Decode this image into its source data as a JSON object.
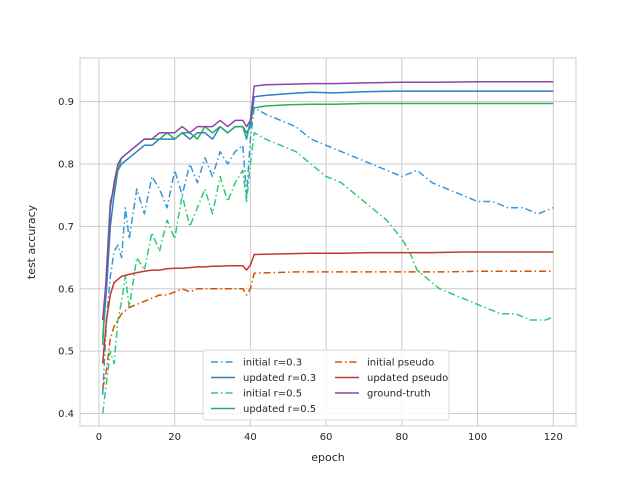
{
  "chart_data": {
    "type": "line",
    "title": "",
    "xlabel": "epoch",
    "ylabel": "test accuracy",
    "xlim": [
      -5,
      126
    ],
    "ylim": [
      0.38,
      0.97
    ],
    "xticks": [
      0,
      20,
      40,
      60,
      80,
      100,
      120
    ],
    "yticks": [
      0.4,
      0.5,
      0.6,
      0.7,
      0.8,
      0.9
    ],
    "xtick_labels": [
      "0",
      "20",
      "40",
      "60",
      "80",
      "100",
      "120"
    ],
    "ytick_labels": [
      "0.4",
      "0.5",
      "0.6",
      "0.7",
      "0.8",
      "0.9"
    ],
    "grid": true,
    "legend": {
      "placement": "lower-center",
      "columns": 2
    },
    "series": [
      {
        "name": "initial r=0.3",
        "style": "dashdot",
        "color": "#3498db",
        "points": [
          [
            1,
            0.43
          ],
          [
            2,
            0.55
          ],
          [
            3,
            0.62
          ],
          [
            4,
            0.66
          ],
          [
            5,
            0.67
          ],
          [
            6,
            0.65
          ],
          [
            7,
            0.73
          ],
          [
            8,
            0.68
          ],
          [
            10,
            0.76
          ],
          [
            12,
            0.72
          ],
          [
            14,
            0.78
          ],
          [
            16,
            0.76
          ],
          [
            18,
            0.73
          ],
          [
            20,
            0.79
          ],
          [
            22,
            0.75
          ],
          [
            24,
            0.8
          ],
          [
            26,
            0.77
          ],
          [
            28,
            0.81
          ],
          [
            30,
            0.78
          ],
          [
            32,
            0.82
          ],
          [
            34,
            0.8
          ],
          [
            36,
            0.82
          ],
          [
            38,
            0.83
          ],
          [
            39,
            0.75
          ],
          [
            40,
            0.84
          ],
          [
            41,
            0.89
          ],
          [
            44,
            0.88
          ],
          [
            48,
            0.87
          ],
          [
            52,
            0.86
          ],
          [
            56,
            0.84
          ],
          [
            60,
            0.83
          ],
          [
            64,
            0.82
          ],
          [
            68,
            0.81
          ],
          [
            72,
            0.8
          ],
          [
            76,
            0.79
          ],
          [
            80,
            0.78
          ],
          [
            84,
            0.79
          ],
          [
            88,
            0.77
          ],
          [
            92,
            0.76
          ],
          [
            96,
            0.75
          ],
          [
            100,
            0.74
          ],
          [
            104,
            0.74
          ],
          [
            108,
            0.73
          ],
          [
            112,
            0.73
          ],
          [
            116,
            0.72
          ],
          [
            120,
            0.73
          ]
        ]
      },
      {
        "name": "updated r=0.3",
        "style": "solid",
        "color": "#2e7ec4",
        "points": [
          [
            1,
            0.52
          ],
          [
            2,
            0.6
          ],
          [
            3,
            0.7
          ],
          [
            4,
            0.75
          ],
          [
            5,
            0.79
          ],
          [
            6,
            0.8
          ],
          [
            8,
            0.81
          ],
          [
            10,
            0.82
          ],
          [
            12,
            0.83
          ],
          [
            14,
            0.83
          ],
          [
            16,
            0.84
          ],
          [
            18,
            0.84
          ],
          [
            20,
            0.84
          ],
          [
            22,
            0.85
          ],
          [
            24,
            0.84
          ],
          [
            26,
            0.85
          ],
          [
            28,
            0.85
          ],
          [
            30,
            0.84
          ],
          [
            32,
            0.86
          ],
          [
            34,
            0.85
          ],
          [
            36,
            0.86
          ],
          [
            38,
            0.86
          ],
          [
            39,
            0.85
          ],
          [
            40,
            0.86
          ],
          [
            41,
            0.908
          ],
          [
            44,
            0.91
          ],
          [
            50,
            0.913
          ],
          [
            56,
            0.915
          ],
          [
            62,
            0.914
          ],
          [
            70,
            0.916
          ],
          [
            80,
            0.917
          ],
          [
            90,
            0.917
          ],
          [
            100,
            0.917
          ],
          [
            110,
            0.917
          ],
          [
            120,
            0.917
          ]
        ]
      },
      {
        "name": "initial r=0.5",
        "style": "dashdot",
        "color": "#2ecc71",
        "points": [
          [
            1,
            0.4
          ],
          [
            2,
            0.45
          ],
          [
            3,
            0.5
          ],
          [
            4,
            0.48
          ],
          [
            5,
            0.55
          ],
          [
            6,
            0.58
          ],
          [
            7,
            0.62
          ],
          [
            8,
            0.57
          ],
          [
            10,
            0.65
          ],
          [
            12,
            0.63
          ],
          [
            14,
            0.69
          ],
          [
            16,
            0.66
          ],
          [
            18,
            0.71
          ],
          [
            20,
            0.68
          ],
          [
            22,
            0.75
          ],
          [
            24,
            0.7
          ],
          [
            26,
            0.73
          ],
          [
            28,
            0.76
          ],
          [
            30,
            0.72
          ],
          [
            32,
            0.78
          ],
          [
            34,
            0.74
          ],
          [
            36,
            0.77
          ],
          [
            38,
            0.79
          ],
          [
            39,
            0.74
          ],
          [
            40,
            0.8
          ],
          [
            41,
            0.85
          ],
          [
            44,
            0.84
          ],
          [
            48,
            0.83
          ],
          [
            52,
            0.82
          ],
          [
            56,
            0.8
          ],
          [
            60,
            0.78
          ],
          [
            64,
            0.77
          ],
          [
            68,
            0.75
          ],
          [
            72,
            0.73
          ],
          [
            76,
            0.71
          ],
          [
            80,
            0.68
          ],
          [
            82,
            0.66
          ],
          [
            84,
            0.63
          ],
          [
            86,
            0.62
          ],
          [
            90,
            0.6
          ],
          [
            94,
            0.59
          ],
          [
            98,
            0.58
          ],
          [
            102,
            0.57
          ],
          [
            106,
            0.56
          ],
          [
            110,
            0.56
          ],
          [
            114,
            0.55
          ],
          [
            118,
            0.55
          ],
          [
            120,
            0.555
          ]
        ]
      },
      {
        "name": "updated r=0.5",
        "style": "solid",
        "color": "#27ae60",
        "points": [
          [
            1,
            0.51
          ],
          [
            2,
            0.63
          ],
          [
            3,
            0.74
          ],
          [
            4,
            0.76
          ],
          [
            5,
            0.79
          ],
          [
            6,
            0.81
          ],
          [
            8,
            0.82
          ],
          [
            10,
            0.83
          ],
          [
            12,
            0.84
          ],
          [
            14,
            0.84
          ],
          [
            16,
            0.84
          ],
          [
            18,
            0.85
          ],
          [
            20,
            0.84
          ],
          [
            22,
            0.85
          ],
          [
            24,
            0.85
          ],
          [
            26,
            0.84
          ],
          [
            28,
            0.86
          ],
          [
            30,
            0.85
          ],
          [
            32,
            0.86
          ],
          [
            34,
            0.85
          ],
          [
            36,
            0.86
          ],
          [
            38,
            0.86
          ],
          [
            39,
            0.84
          ],
          [
            40,
            0.87
          ],
          [
            41,
            0.89
          ],
          [
            44,
            0.893
          ],
          [
            50,
            0.895
          ],
          [
            56,
            0.896
          ],
          [
            62,
            0.896
          ],
          [
            70,
            0.897
          ],
          [
            80,
            0.897
          ],
          [
            90,
            0.897
          ],
          [
            100,
            0.897
          ],
          [
            110,
            0.897
          ],
          [
            120,
            0.897
          ]
        ]
      },
      {
        "name": "initial pseudo",
        "style": "dashdot",
        "color": "#d35400",
        "points": [
          [
            1,
            0.44
          ],
          [
            2,
            0.47
          ],
          [
            3,
            0.52
          ],
          [
            4,
            0.54
          ],
          [
            5,
            0.55
          ],
          [
            6,
            0.56
          ],
          [
            8,
            0.57
          ],
          [
            10,
            0.575
          ],
          [
            12,
            0.58
          ],
          [
            14,
            0.585
          ],
          [
            16,
            0.59
          ],
          [
            18,
            0.59
          ],
          [
            20,
            0.595
          ],
          [
            22,
            0.6
          ],
          [
            24,
            0.595
          ],
          [
            26,
            0.6
          ],
          [
            28,
            0.6
          ],
          [
            30,
            0.6
          ],
          [
            32,
            0.6
          ],
          [
            34,
            0.6
          ],
          [
            36,
            0.6
          ],
          [
            38,
            0.6
          ],
          [
            39,
            0.59
          ],
          [
            40,
            0.6
          ],
          [
            41,
            0.625
          ],
          [
            46,
            0.626
          ],
          [
            52,
            0.627
          ],
          [
            58,
            0.627
          ],
          [
            64,
            0.627
          ],
          [
            70,
            0.627
          ],
          [
            76,
            0.627
          ],
          [
            80,
            0.627
          ],
          [
            86,
            0.627
          ],
          [
            92,
            0.627
          ],
          [
            100,
            0.628
          ],
          [
            110,
            0.628
          ],
          [
            120,
            0.628
          ]
        ]
      },
      {
        "name": "updated pseudo",
        "style": "solid",
        "color": "#c0392b",
        "points": [
          [
            1,
            0.48
          ],
          [
            2,
            0.55
          ],
          [
            3,
            0.59
          ],
          [
            4,
            0.61
          ],
          [
            5,
            0.615
          ],
          [
            6,
            0.62
          ],
          [
            8,
            0.623
          ],
          [
            10,
            0.626
          ],
          [
            12,
            0.628
          ],
          [
            14,
            0.63
          ],
          [
            16,
            0.63
          ],
          [
            18,
            0.632
          ],
          [
            20,
            0.633
          ],
          [
            22,
            0.633
          ],
          [
            24,
            0.634
          ],
          [
            26,
            0.635
          ],
          [
            28,
            0.635
          ],
          [
            30,
            0.636
          ],
          [
            32,
            0.636
          ],
          [
            34,
            0.637
          ],
          [
            36,
            0.637
          ],
          [
            38,
            0.637
          ],
          [
            39,
            0.63
          ],
          [
            40,
            0.638
          ],
          [
            41,
            0.655
          ],
          [
            48,
            0.656
          ],
          [
            56,
            0.657
          ],
          [
            64,
            0.657
          ],
          [
            72,
            0.658
          ],
          [
            80,
            0.658
          ],
          [
            88,
            0.658
          ],
          [
            96,
            0.659
          ],
          [
            104,
            0.659
          ],
          [
            112,
            0.659
          ],
          [
            120,
            0.659
          ]
        ]
      },
      {
        "name": "ground-truth",
        "style": "solid",
        "color": "#8e44ad",
        "points": [
          [
            1,
            0.55
          ],
          [
            2,
            0.62
          ],
          [
            3,
            0.73
          ],
          [
            4,
            0.77
          ],
          [
            5,
            0.8
          ],
          [
            6,
            0.81
          ],
          [
            8,
            0.82
          ],
          [
            10,
            0.83
          ],
          [
            12,
            0.84
          ],
          [
            14,
            0.84
          ],
          [
            16,
            0.85
          ],
          [
            18,
            0.85
          ],
          [
            20,
            0.85
          ],
          [
            22,
            0.86
          ],
          [
            24,
            0.85
          ],
          [
            26,
            0.86
          ],
          [
            28,
            0.86
          ],
          [
            30,
            0.86
          ],
          [
            32,
            0.87
          ],
          [
            34,
            0.86
          ],
          [
            36,
            0.87
          ],
          [
            38,
            0.87
          ],
          [
            39,
            0.86
          ],
          [
            40,
            0.87
          ],
          [
            41,
            0.925
          ],
          [
            44,
            0.927
          ],
          [
            50,
            0.928
          ],
          [
            56,
            0.929
          ],
          [
            62,
            0.929
          ],
          [
            70,
            0.93
          ],
          [
            80,
            0.931
          ],
          [
            90,
            0.931
          ],
          [
            100,
            0.932
          ],
          [
            110,
            0.932
          ],
          [
            120,
            0.932
          ]
        ]
      }
    ]
  }
}
